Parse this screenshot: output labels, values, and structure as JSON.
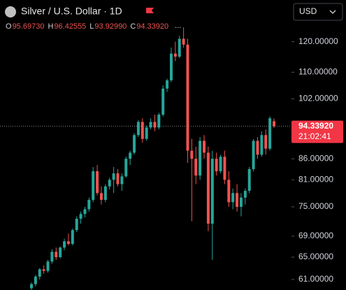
{
  "chart_data": {
    "type": "candlestick",
    "title": "Silver / U.S. Dollar · 1D",
    "currency": "USD",
    "more": "...",
    "legend_values": [
      {
        "key": "O",
        "label": "95.69730"
      },
      {
        "key": "H",
        "label": "96.42555"
      },
      {
        "key": "L",
        "label": "93.92990"
      },
      {
        "key": "C",
        "label": "94.33920"
      }
    ],
    "up_color": "#26a69a",
    "down_color": "#ef5350",
    "log_scale": true,
    "ylim": [
      59.2,
      135.1
    ],
    "yticks": [
      {
        "value": 120,
        "label": "120.00000"
      },
      {
        "value": 110,
        "label": "110.00000"
      },
      {
        "value": 102,
        "label": "102.00000"
      },
      {
        "value": 86,
        "label": "86.00000"
      },
      {
        "value": 81,
        "label": "81.00000"
      },
      {
        "value": 75,
        "label": "75.00000"
      },
      {
        "value": 69,
        "label": "69.00000"
      },
      {
        "value": 65,
        "label": "65.00000"
      },
      {
        "value": 61,
        "label": "61.00000"
      }
    ],
    "last_price": {
      "value": 94.3392,
      "label": "94.33920"
    },
    "countdown": "21:02:41",
    "open": [
      59.5,
      60.2,
      61.5,
      62.8,
      62.5,
      64.2,
      66,
      65,
      66.8,
      68,
      67.5,
      70.2,
      72.5,
      73.5,
      74.5,
      76.5,
      83,
      78,
      76.5,
      79.5,
      81,
      82.5,
      80,
      81.8,
      86,
      87.5,
      92,
      95.5,
      91,
      94,
      95.5,
      94,
      97.5,
      105,
      107.5,
      116,
      115,
      121,
      119,
      88,
      86,
      82,
      90.5,
      87.5,
      71.5,
      86,
      83,
      86.5,
      81,
      76,
      78,
      75,
      77,
      78.5,
      83.5,
      90.5,
      87,
      92,
      88.5,
      95.6973
    ],
    "high": [
      60.5,
      61.8,
      63,
      63.5,
      64.5,
      66.5,
      66.8,
      67,
      68.5,
      69.5,
      70.5,
      73,
      74,
      75,
      77,
      84,
      84.5,
      79.5,
      80,
      81.5,
      84,
      83.5,
      82.5,
      86.5,
      88,
      92.5,
      96,
      96.5,
      94.5,
      96.5,
      97.5,
      98,
      106,
      108,
      118,
      120,
      122,
      125,
      121,
      91,
      89,
      91.5,
      92,
      89,
      88,
      87.5,
      87,
      88,
      83,
      79,
      80,
      78,
      79,
      84,
      91,
      91.5,
      93,
      93.5,
      97,
      96.42555
    ],
    "low": [
      59,
      59.8,
      61,
      62,
      62.2,
      63.8,
      64.5,
      64.8,
      66.3,
      67.2,
      67.2,
      69.8,
      71.5,
      72.8,
      74,
      76,
      77.5,
      75.5,
      76,
      78.8,
      78,
      79.5,
      78.5,
      81.5,
      84.5,
      87,
      91.5,
      90,
      90.5,
      93.5,
      93,
      93.5,
      97,
      104,
      107,
      113.5,
      114.5,
      118,
      85,
      72,
      80,
      81,
      86,
      70,
      64.5,
      82,
      82.5,
      80,
      75,
      74.5,
      74,
      73,
      75.5,
      78,
      83,
      86,
      86.5,
      87,
      88,
      93.9299
    ],
    "close": [
      60.2,
      61.5,
      62.8,
      62.5,
      64.2,
      66,
      65,
      66.8,
      68,
      67.5,
      70.2,
      72.5,
      73.5,
      74.5,
      76.5,
      83,
      78,
      76.5,
      79.5,
      81,
      82.5,
      80,
      81.8,
      86,
      87.5,
      92,
      95.5,
      91,
      94,
      95.5,
      94,
      97.5,
      105,
      107.5,
      116,
      115,
      121,
      119,
      88,
      86,
      82,
      90.5,
      87.5,
      71.5,
      86,
      83,
      86.5,
      81,
      76,
      78,
      75,
      77,
      78.5,
      83.5,
      90.5,
      87,
      92,
      88.5,
      96.5,
      94.3392
    ]
  }
}
